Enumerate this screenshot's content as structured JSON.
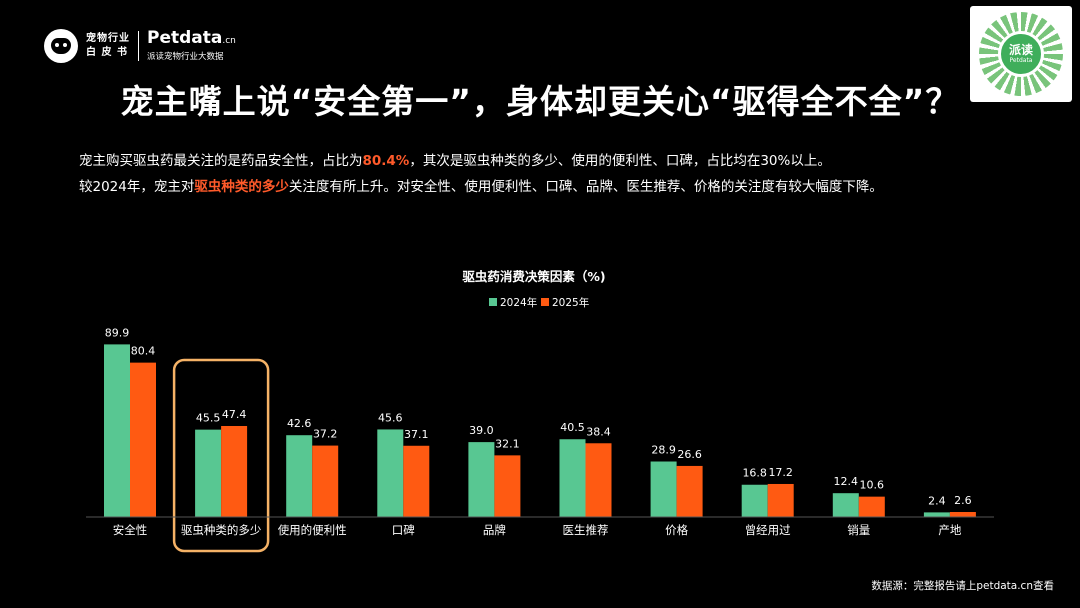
{
  "header": {
    "logo_line1": "宠物行业",
    "logo_line2": "白 皮 书",
    "brand_main": "Petdata",
    "brand_suffix": ".cn",
    "brand_sub": "派读宠物行业大数据",
    "qr_title": "派读",
    "qr_sub": "Petdata"
  },
  "headline": "宠主嘴上说“安全第一”，身体却更关心“驱得全不全”？",
  "description": {
    "line1_before": "宠主购买驱虫药最关注的是药品安全性，占比为",
    "line1_highlight": "80.4%",
    "line1_after": "，其次是驱虫种类的多少、使用的便利性、口碑，占比均在30%以上。",
    "line2_before": "较2024年，宠主对",
    "line2_highlight": "驱虫种类的多少",
    "line2_after": "关注度有所上升。对安全性、使用便利性、口碑、品牌、医生推荐、价格的关注度有较大幅度下降。"
  },
  "source": "数据源：完整报告请上petdata.cn查看",
  "colors": {
    "series_2024": "#58c792",
    "series_2025": "#ff5a12",
    "highlight_box": "#f5b266",
    "accent_text": "#ff5a2a"
  },
  "chart_data": {
    "type": "bar",
    "title": "驱虫药消费决策因素（%)",
    "categories": [
      "安全性",
      "驱虫种类的多少",
      "使用的便利性",
      "口碑",
      "品牌",
      "医生推荐",
      "价格",
      "曾经用过",
      "销量",
      "产地"
    ],
    "series": [
      {
        "name": "2024年",
        "values": [
          89.9,
          45.5,
          42.6,
          45.6,
          39.0,
          40.5,
          28.9,
          16.8,
          12.4,
          2.4
        ]
      },
      {
        "name": "2025年",
        "values": [
          80.4,
          47.4,
          37.2,
          37.1,
          32.1,
          38.4,
          26.6,
          17.2,
          10.6,
          2.6
        ]
      }
    ],
    "ylim": [
      0,
      100
    ],
    "grid": false,
    "legend_position": "top-center",
    "highlighted_category": "驱虫种类的多少"
  }
}
